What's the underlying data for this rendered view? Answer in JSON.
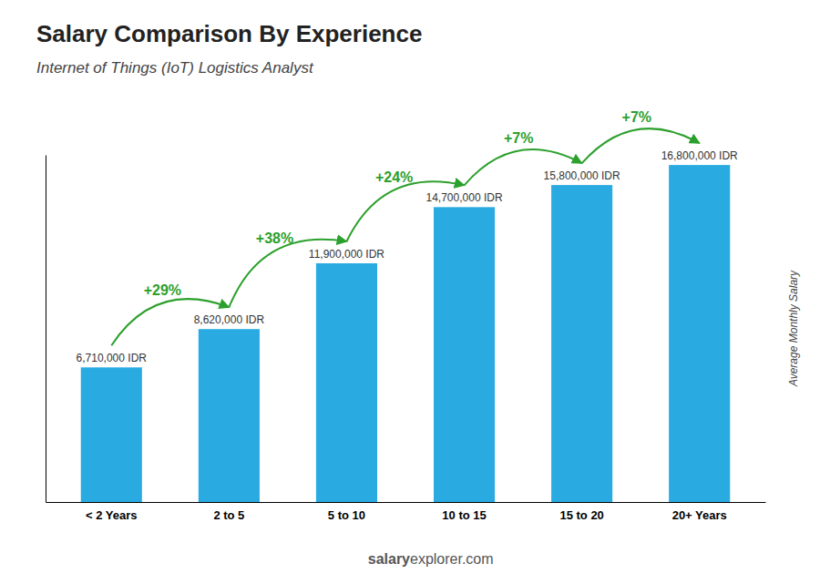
{
  "chart_data": {
    "type": "bar",
    "title": "Salary Comparison By Experience",
    "subtitle": "Internet of Things (IoT) Logistics Analyst",
    "categories": [
      "< 2 Years",
      "2 to 5",
      "5 to 10",
      "10 to 15",
      "15 to 20",
      "20+ Years"
    ],
    "values": [
      6710000,
      8620000,
      11900000,
      14700000,
      15800000,
      16800000
    ],
    "value_labels": [
      "6,710,000 IDR",
      "8,620,000 IDR",
      "11,900,000 IDR",
      "14,700,000 IDR",
      "15,800,000 IDR",
      "16,800,000 IDR"
    ],
    "data_labels": true,
    "annotations": [
      "+29%",
      "+38%",
      "+24%",
      "+7%",
      "+7%"
    ],
    "ylabel": "Average Monthly Salary",
    "watermark": [
      "salary",
      "explorer.com"
    ],
    "color": "#29abe2",
    "ylim": [
      0,
      17304000
    ],
    "tick_labels": "x",
    "grid": false
  }
}
